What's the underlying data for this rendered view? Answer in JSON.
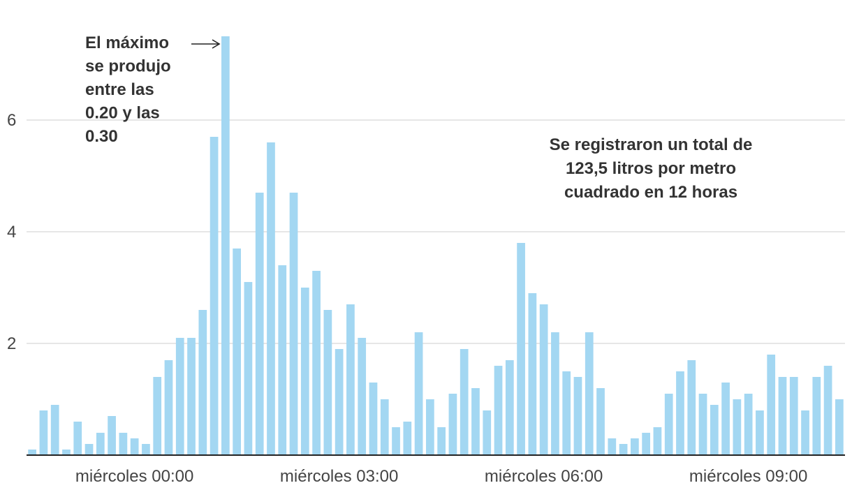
{
  "chart_data": {
    "type": "bar",
    "title": "",
    "xlabel": "",
    "ylabel": "",
    "ylim": [
      0,
      7.5
    ],
    "grid": true,
    "bar_color": "#a3d7f2",
    "x_ticks": [
      {
        "label": "miércoles 00:00",
        "index": 9
      },
      {
        "label": "miércoles 03:00",
        "index": 27
      },
      {
        "label": "miércoles 06:00",
        "index": 45
      },
      {
        "label": "miércoles 09:00",
        "index": 63
      }
    ],
    "y_ticks": [
      2,
      4,
      6
    ],
    "values": [
      0.1,
      0.8,
      0.9,
      0.1,
      0.6,
      0.2,
      0.4,
      0.7,
      0.4,
      0.3,
      0.2,
      1.4,
      1.7,
      2.1,
      2.1,
      2.6,
      5.7,
      7.5,
      3.7,
      3.1,
      4.7,
      5.6,
      3.4,
      4.7,
      3.0,
      3.3,
      2.6,
      1.9,
      2.7,
      2.1,
      1.3,
      1.0,
      0.5,
      0.6,
      2.2,
      1.0,
      0.5,
      1.1,
      1.9,
      1.2,
      0.8,
      1.6,
      1.7,
      3.8,
      2.9,
      2.7,
      2.2,
      1.5,
      1.4,
      2.2,
      1.2,
      0.3,
      0.2,
      0.3,
      0.4,
      0.5,
      1.1,
      1.5,
      1.7,
      1.1,
      0.9,
      1.3,
      1.0,
      1.1,
      0.8,
      1.8,
      1.4,
      1.4,
      0.8,
      1.4,
      1.6,
      1.0
    ],
    "annotations": [
      {
        "id": "max",
        "lines": [
          "El máximo",
          "se produjo",
          "entre las",
          "0.20 y las",
          "0.30"
        ],
        "target_index": 17
      },
      {
        "id": "total",
        "lines": [
          "Se registraron un total de",
          "123,5 litros por metro",
          "cuadrado en 12 horas"
        ]
      }
    ]
  }
}
